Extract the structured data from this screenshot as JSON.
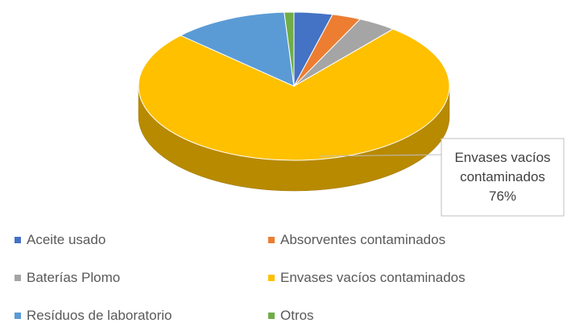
{
  "chart_data": {
    "type": "pie",
    "categories": [
      "Aceite usado",
      "Absorventes contaminados",
      "Baterías Plomo",
      "Envases vacíos contaminados",
      "Resíduos de laboratorio",
      "Otros"
    ],
    "values": [
      4,
      3,
      4,
      76,
      12,
      1
    ],
    "value_labels": [
      null,
      null,
      null,
      "76%",
      null,
      null
    ],
    "colors": [
      "#4472c4",
      "#ed7d31",
      "#a5a5a5",
      "#ffc000",
      "#5b9bd5",
      "#70ad47"
    ],
    "legend": "bottom"
  }
}
